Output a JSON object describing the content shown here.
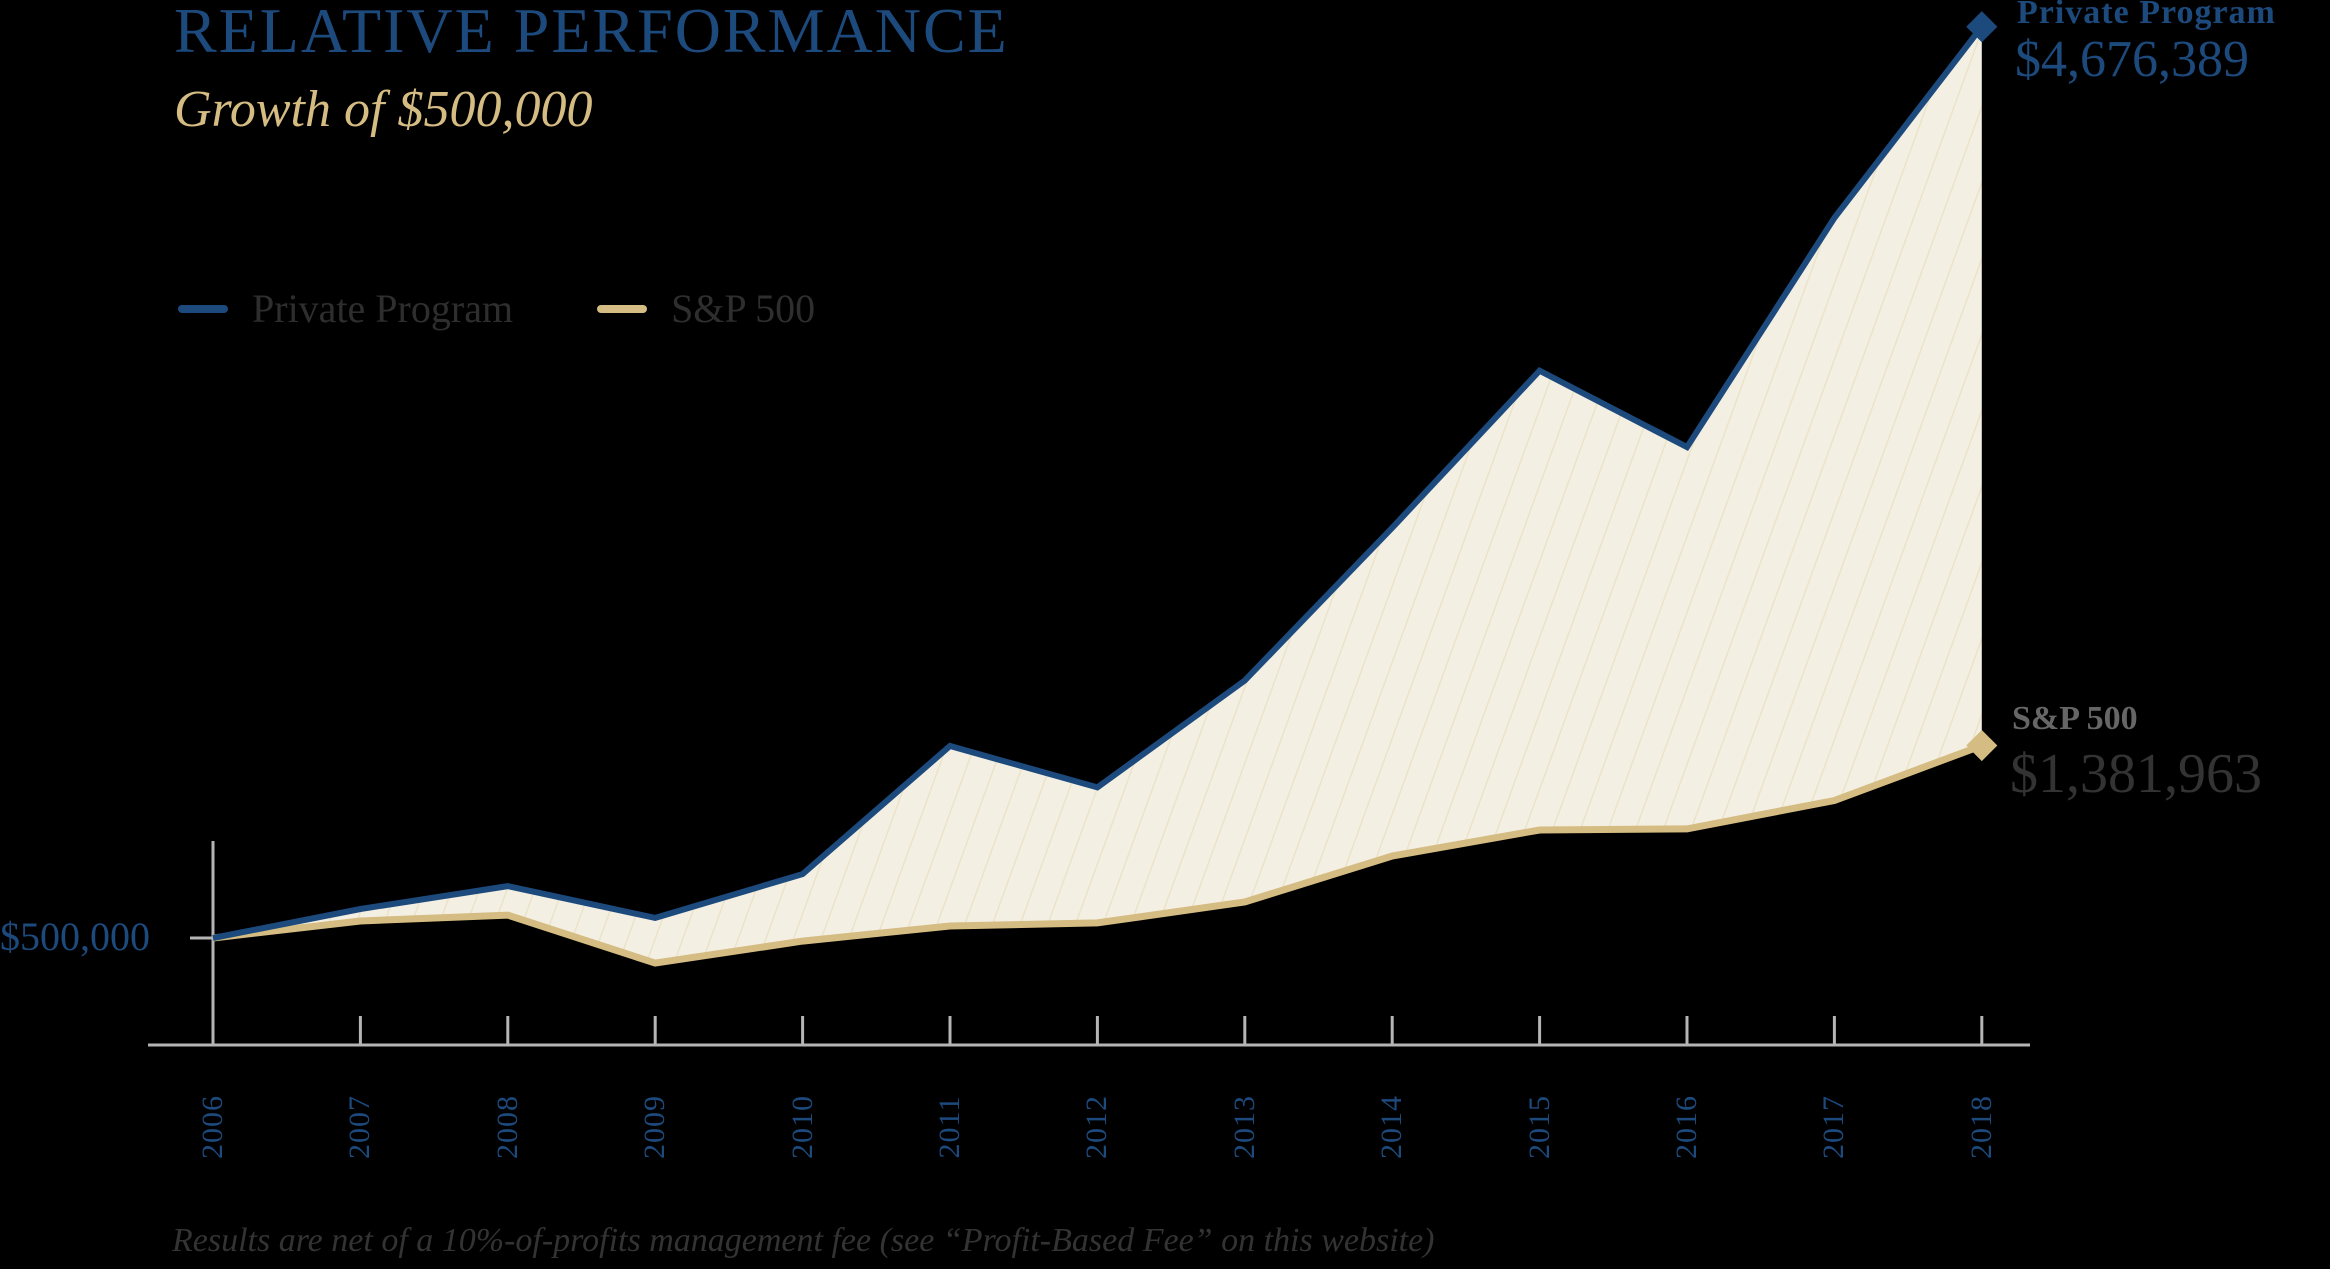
{
  "header": {
    "title": "RELATIVE PERFORMANCE",
    "subtitle": "Growth of $500,000"
  },
  "legend": [
    {
      "label": "Private Program",
      "color": "#1d4a7d"
    },
    {
      "label": "S&P 500",
      "color": "#d4bc82"
    }
  ],
  "y_axis": {
    "tick_label": "$500,000"
  },
  "end_labels": {
    "private_program": {
      "name": "Private Program",
      "value": "$4,676,389"
    },
    "sp500": {
      "name": "S&P 500",
      "value": "$1,381,963"
    }
  },
  "years": [
    "2006",
    "2007",
    "2008",
    "2009",
    "2010",
    "2011",
    "2012",
    "2013",
    "2014",
    "2015",
    "2016",
    "2017",
    "2018"
  ],
  "footnote": "Results are net of a 10%-of-profits management fee (see “Profit-Based Fee” on this website)",
  "colors": {
    "navy": "#1d4a7d",
    "gold": "#d4bc82",
    "fill": "#f4efe3",
    "stripe": "#ebe3c9",
    "axis": "#b5b5b5"
  },
  "chart_data": {
    "type": "area",
    "title": "RELATIVE PERFORMANCE",
    "subtitle": "Growth of $500,000",
    "xlabel": "",
    "ylabel": "",
    "x": [
      2006,
      2007,
      2008,
      2009,
      2010,
      2011,
      2012,
      2013,
      2014,
      2015,
      2016,
      2017,
      2018
    ],
    "series": [
      {
        "name": "Private Program",
        "color": "#1d4a7d",
        "values": [
          500000,
          633000,
          738000,
          592000,
          793000,
          1380000,
          1190000,
          1680000,
          2380000,
          3100000,
          2750000,
          3800000,
          4676389
        ]
      },
      {
        "name": "S&P 500",
        "color": "#d4bc82",
        "values": [
          500000,
          578000,
          605000,
          385000,
          486000,
          555000,
          569000,
          665000,
          876000,
          995000,
          1000000,
          1130000,
          1381963
        ]
      }
    ],
    "fill_between": true,
    "y_tick_labels": [
      "$500,000"
    ],
    "end_annotations": [
      {
        "series": "Private Program",
        "text": "$4,676,389"
      },
      {
        "series": "S&P 500",
        "text": "$1,381,963"
      }
    ],
    "legend_position": "top-left",
    "grid": false,
    "ylim": [
      0,
      4676389
    ]
  }
}
